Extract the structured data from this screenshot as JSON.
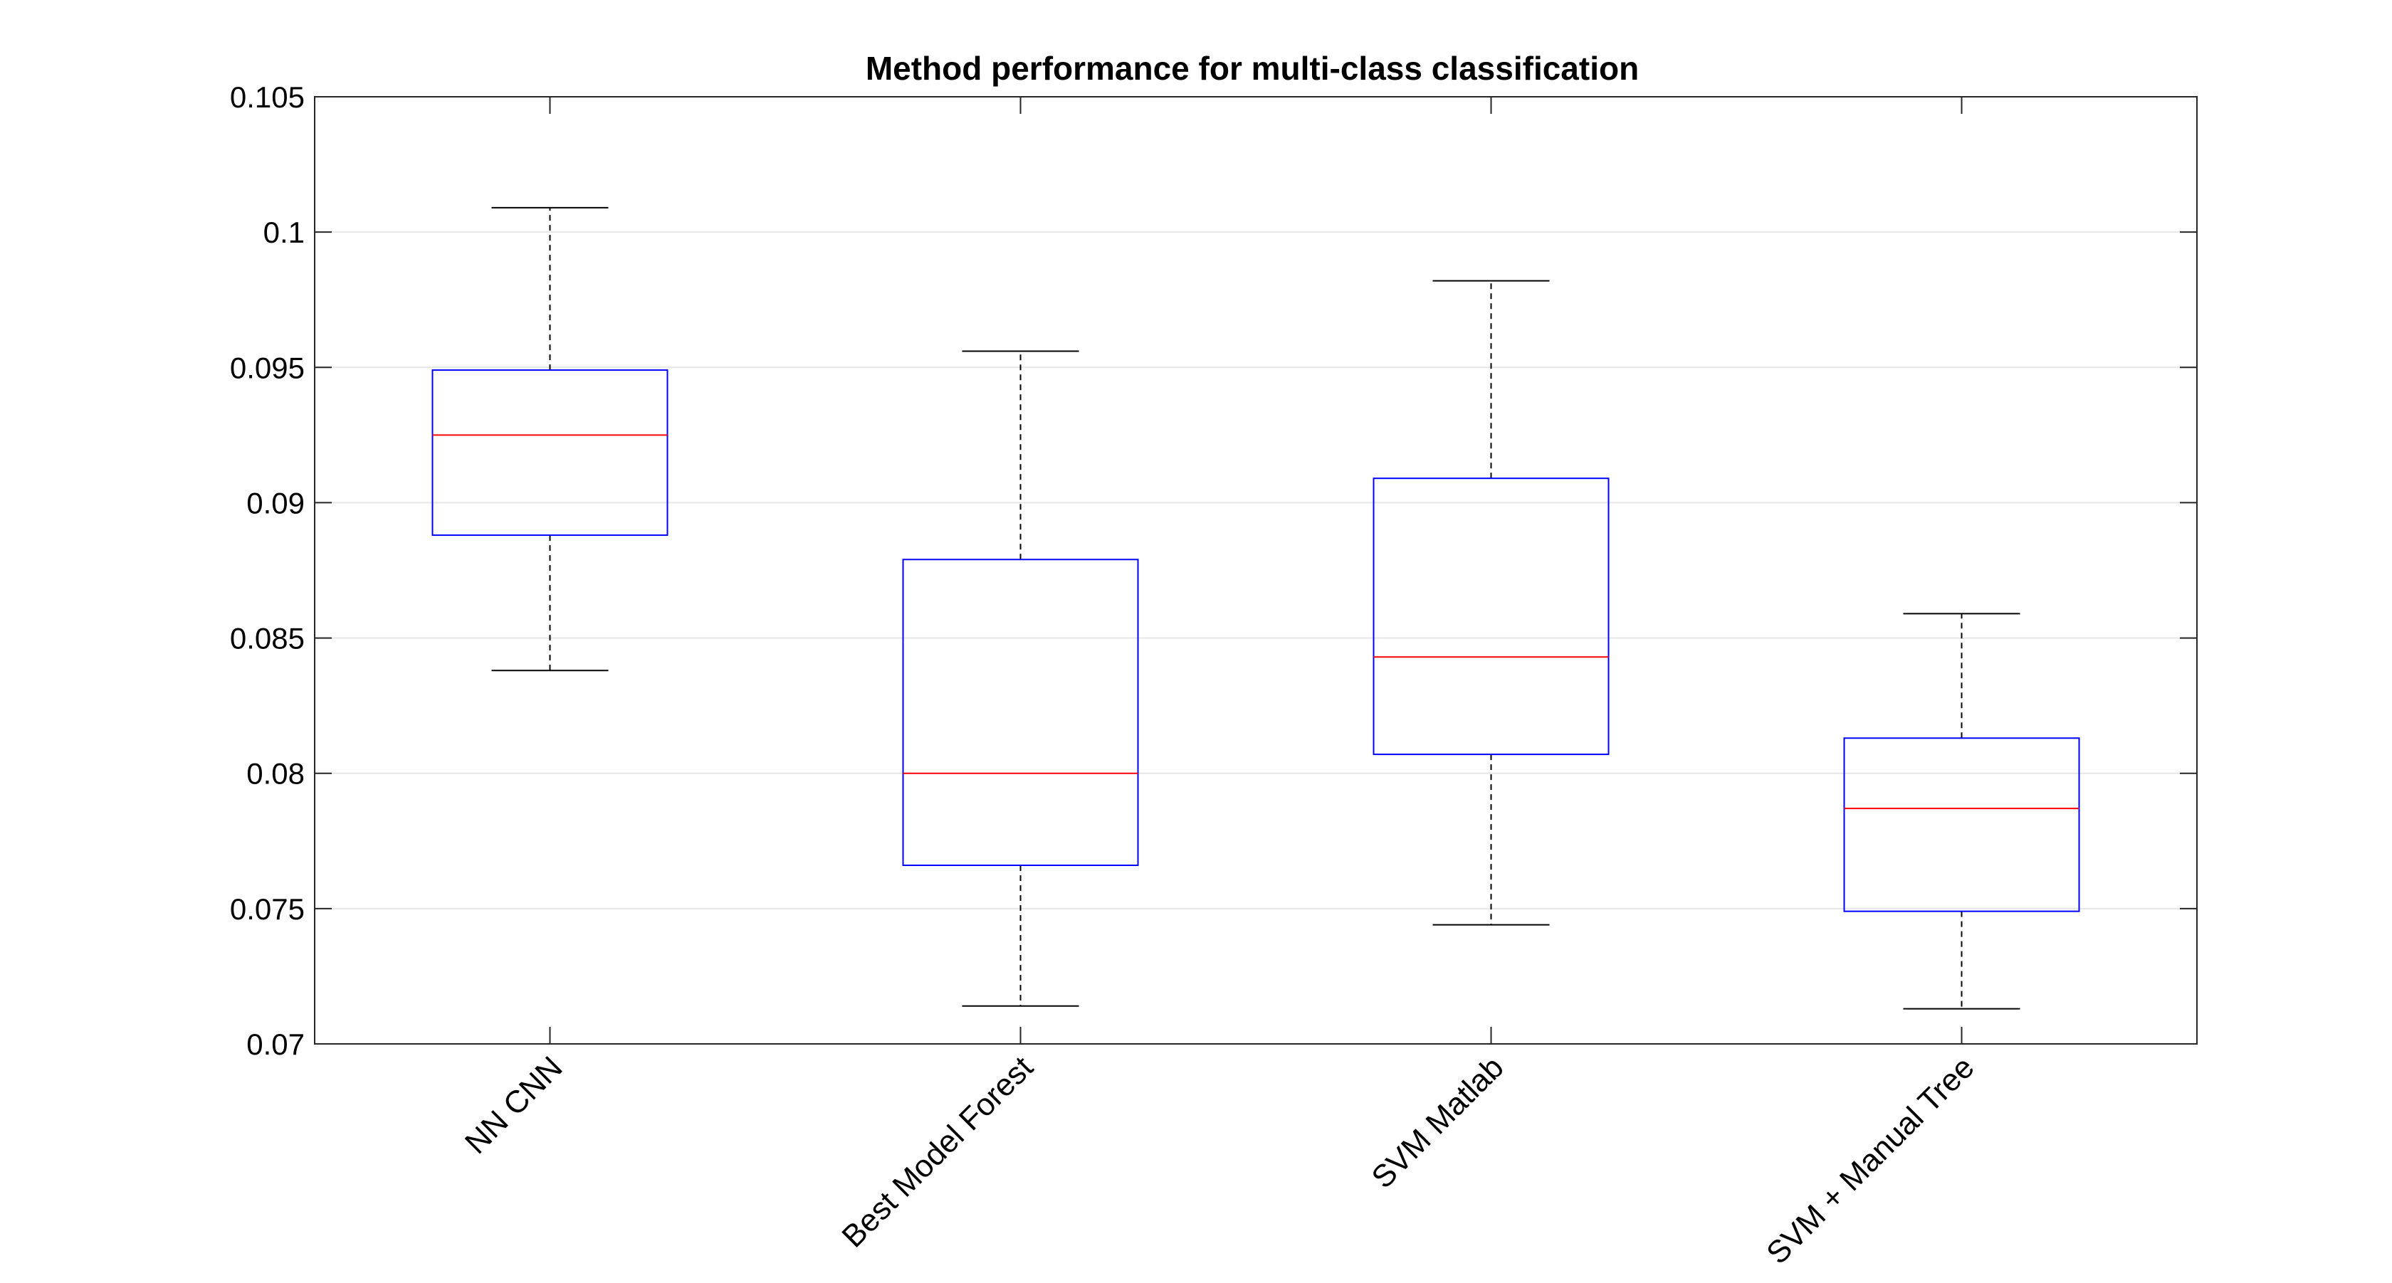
{
  "chart_data": {
    "type": "boxplot",
    "title": "Method performance for multi-class classification",
    "xlabel": "",
    "ylabel": "",
    "ylim": [
      0.07,
      0.105
    ],
    "yticks": [
      0.07,
      0.075,
      0.08,
      0.085,
      0.09,
      0.095,
      0.1,
      0.105
    ],
    "ytick_labels": [
      "0.07",
      "0.075",
      "0.08",
      "0.085",
      "0.09",
      "0.095",
      "0.1",
      "0.105"
    ],
    "grid": true,
    "categories": [
      "NN CNN",
      "Best Model Forest",
      "SVM Matlab",
      "SVM + Manual Tree"
    ],
    "boxes": [
      {
        "whisker_low": 0.0838,
        "q1": 0.0888,
        "median": 0.0925,
        "q3": 0.0949,
        "whisker_high": 0.1009
      },
      {
        "whisker_low": 0.0714,
        "q1": 0.0766,
        "median": 0.08,
        "q3": 0.0879,
        "whisker_high": 0.0956
      },
      {
        "whisker_low": 0.0744,
        "q1": 0.0807,
        "median": 0.0843,
        "q3": 0.0909,
        "whisker_high": 0.0982
      },
      {
        "whisker_low": 0.0713,
        "q1": 0.0749,
        "median": 0.0787,
        "q3": 0.0813,
        "whisker_high": 0.0859
      }
    ],
    "colors": {
      "box": "#0000ff",
      "median": "#ff0000",
      "whisker": "#000000",
      "axis": "#262626",
      "grid": "#e6e6e6",
      "text": "#000000"
    }
  }
}
